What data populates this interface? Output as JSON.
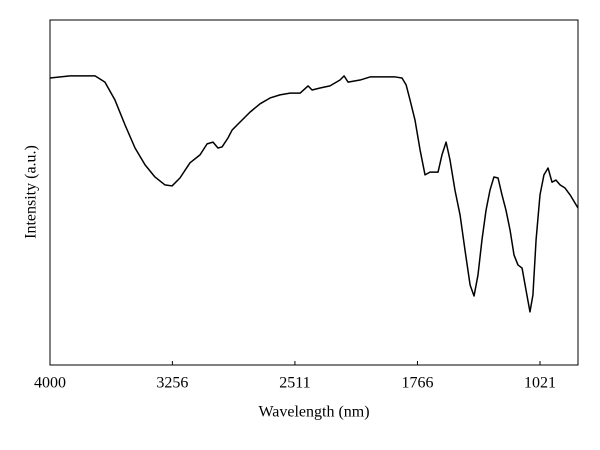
{
  "chart_data": {
    "type": "line",
    "x_label": "Wavelength (nm)",
    "y_label": "Intensity (a.u.)",
    "xlim": [
      4000,
      790
    ],
    "ylim": [
      0,
      100
    ],
    "xticks": [
      4000,
      3256,
      2511,
      1766,
      1021
    ],
    "x": [
      4000,
      3878,
      3726,
      3666,
      3605,
      3544,
      3483,
      3422,
      3362,
      3301,
      3258,
      3210,
      3149,
      3088,
      3045,
      3009,
      2979,
      2954,
      2918,
      2893,
      2845,
      2784,
      2723,
      2662,
      2602,
      2541,
      2480,
      2431,
      2407,
      2358,
      2298,
      2237,
      2212,
      2188,
      2115,
      2054,
      1994,
      1902,
      1860,
      1835,
      1811,
      1781,
      1750,
      1720,
      1690,
      1641,
      1617,
      1592,
      1568,
      1538,
      1507,
      1477,
      1446,
      1422,
      1398,
      1374,
      1349,
      1325,
      1301,
      1276,
      1252,
      1228,
      1203,
      1179,
      1155,
      1130,
      1106,
      1082,
      1064,
      1045,
      1021,
      997,
      972,
      948,
      924,
      899,
      869,
      838,
      790
    ],
    "series": [
      {
        "color": "#000000",
        "values": [
          83.2,
          83.8,
          83.8,
          82.0,
          76.8,
          69.6,
          62.9,
          58.0,
          54.5,
          52.2,
          51.9,
          54.2,
          58.6,
          60.9,
          64.1,
          64.6,
          62.9,
          63.2,
          65.8,
          68.1,
          70.4,
          73.3,
          75.7,
          77.4,
          78.3,
          78.8,
          78.8,
          80.9,
          79.7,
          80.3,
          80.9,
          82.6,
          83.8,
          82.0,
          82.6,
          83.5,
          83.5,
          83.5,
          83.2,
          81.2,
          76.8,
          71.0,
          62.3,
          55.1,
          55.9,
          55.9,
          60.9,
          64.6,
          59.4,
          50.7,
          43.5,
          33.3,
          23.2,
          20.0,
          26.1,
          36.2,
          44.9,
          50.7,
          54.5,
          54.2,
          49.3,
          44.9,
          39.1,
          31.9,
          29.0,
          28.1,
          21.7,
          15.4,
          20.3,
          36.2,
          49.3,
          55.1,
          57.1,
          53.0,
          53.6,
          52.2,
          51.3,
          49.3,
          45.5
        ]
      }
    ]
  }
}
